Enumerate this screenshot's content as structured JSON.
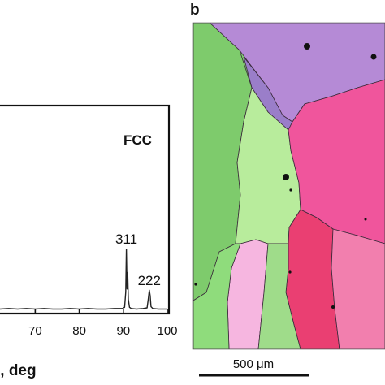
{
  "chart_data": {
    "type": "line",
    "annotation": "FCC",
    "x_ticks": [
      "70",
      "80",
      "90",
      "100"
    ],
    "x_label_partial": "θ, deg",
    "xlim": [
      62,
      100
    ],
    "peak_labels": [
      {
        "text": "311",
        "x": 90.7
      },
      {
        "text": "222",
        "x": 95.9
      }
    ],
    "series": [
      {
        "x": [
          62,
          64,
          66,
          68,
          70,
          72,
          74,
          76,
          78,
          80,
          82,
          84,
          86,
          88,
          89.8,
          90.3,
          90.55,
          90.7,
          90.85,
          91.0,
          91.15,
          91.4,
          91.8,
          93,
          94.5,
          95.4,
          95.7,
          95.9,
          96.1,
          96.3,
          96.7,
          98,
          100
        ],
        "y": [
          2,
          3,
          2,
          3,
          2,
          3,
          2,
          2,
          3,
          2,
          3,
          2,
          2,
          3,
          3,
          5,
          30,
          100,
          35,
          62,
          18,
          5,
          3,
          2,
          3,
          4,
          20,
          33,
          24,
          6,
          3,
          2,
          2
        ]
      }
    ]
  },
  "panel_b": {
    "label": "b",
    "scale_bar_text": "500 μm",
    "scale_bar_value_um": 500
  }
}
